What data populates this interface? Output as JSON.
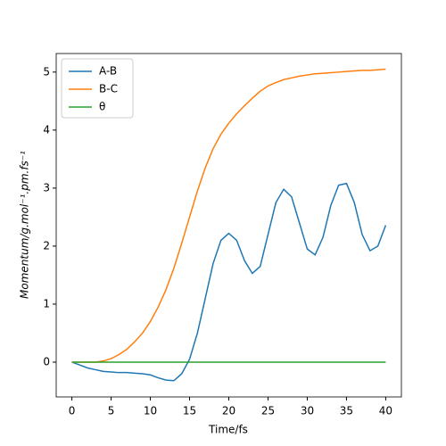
{
  "chart_data": {
    "type": "line",
    "xlabel": "Time/fs",
    "ylabel": "Momentum/g.mol⁻¹.pm.fs⁻¹",
    "x": [
      0,
      1,
      2,
      3,
      4,
      5,
      6,
      7,
      8,
      9,
      10,
      11,
      12,
      13,
      14,
      15,
      16,
      17,
      18,
      19,
      20,
      21,
      22,
      23,
      24,
      25,
      26,
      27,
      28,
      29,
      30,
      31,
      32,
      33,
      34,
      35,
      36,
      37,
      38,
      39,
      40
    ],
    "series": [
      {
        "name": "A-B",
        "color": "#1f77b4",
        "values": [
          0,
          -0.05,
          -0.1,
          -0.13,
          -0.16,
          -0.17,
          -0.18,
          -0.18,
          -0.19,
          -0.2,
          -0.22,
          -0.27,
          -0.31,
          -0.32,
          -0.2,
          0.05,
          0.5,
          1.1,
          1.7,
          2.1,
          2.22,
          2.1,
          1.75,
          1.53,
          1.65,
          2.2,
          2.75,
          2.98,
          2.85,
          2.4,
          1.95,
          1.85,
          2.15,
          2.7,
          3.05,
          3.08,
          2.75,
          2.2,
          1.92,
          2.0,
          2.36
        ]
      },
      {
        "name": "B-C",
        "color": "#ff7f0e",
        "values": [
          0,
          0,
          0,
          0,
          0.02,
          0.06,
          0.13,
          0.22,
          0.35,
          0.5,
          0.7,
          0.95,
          1.25,
          1.62,
          2.05,
          2.5,
          2.95,
          3.35,
          3.68,
          3.93,
          4.12,
          4.28,
          4.42,
          4.55,
          4.67,
          4.76,
          4.82,
          4.87,
          4.9,
          4.93,
          4.95,
          4.97,
          4.98,
          4.99,
          5.0,
          5.01,
          5.02,
          5.03,
          5.03,
          5.04,
          5.05
        ]
      },
      {
        "name": "θ",
        "color": "#2ca02c",
        "values": [
          0,
          0,
          0,
          0,
          0,
          0,
          0,
          0,
          0,
          0,
          0,
          0,
          0,
          0,
          0,
          0,
          0,
          0,
          0,
          0,
          0,
          0,
          0,
          0,
          0,
          0,
          0,
          0,
          0,
          0,
          0,
          0,
          0,
          0,
          0,
          0,
          0,
          0,
          0,
          0,
          0
        ]
      }
    ],
    "xlim": [
      -2,
      42
    ],
    "xticks": [
      0,
      5,
      10,
      15,
      20,
      25,
      30,
      35,
      40
    ],
    "ylim": [
      -0.6,
      5.32
    ],
    "yticks": [
      0,
      1,
      2,
      3,
      4,
      5
    ],
    "legend": "upper left"
  }
}
